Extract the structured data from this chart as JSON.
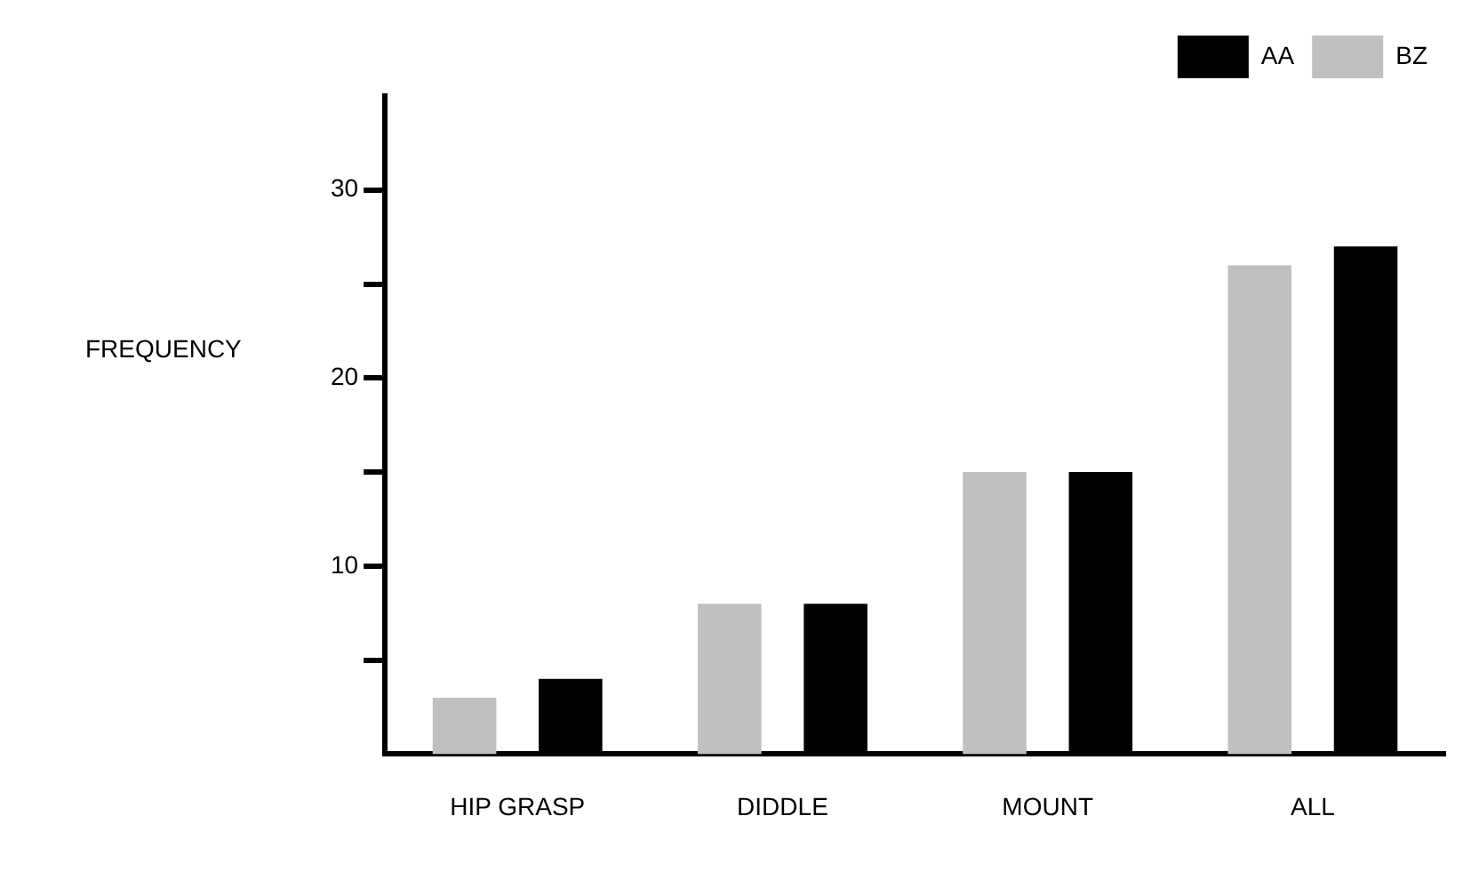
{
  "chart_data": {
    "type": "bar",
    "ylabel": "FREQUENCY",
    "categories": [
      "HIP GRASP",
      "DIDDLE",
      "MOUNT",
      "ALL"
    ],
    "series": [
      {
        "name": "BZ",
        "color": "#c0c0c0",
        "values": [
          3,
          8,
          15,
          26
        ]
      },
      {
        "name": "AA",
        "color": "#000000",
        "values": [
          4,
          8,
          15,
          27
        ]
      }
    ],
    "ylim": [
      0,
      35
    ],
    "yticks": [
      {
        "value": 5,
        "label": null
      },
      10,
      {
        "value": 15,
        "label": null
      },
      20,
      {
        "value": 25,
        "label": null
      },
      30
    ],
    "grid": false,
    "legend": "top right"
  }
}
